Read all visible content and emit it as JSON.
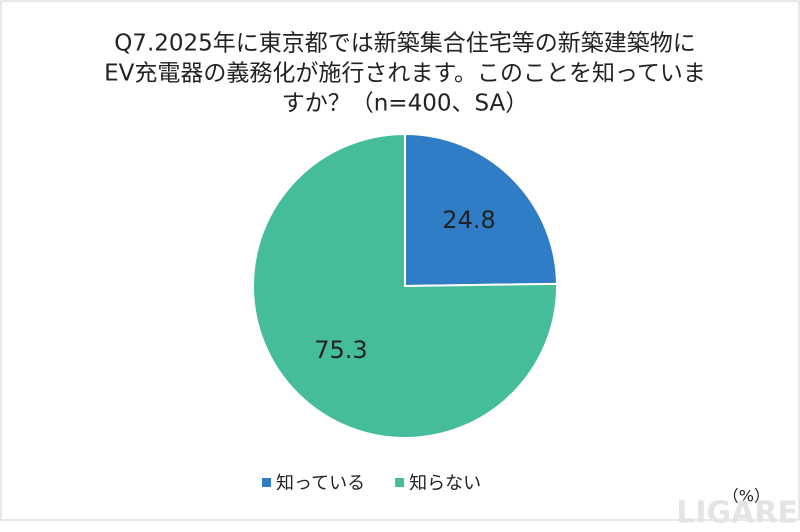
{
  "chart_data": {
    "type": "pie",
    "title": [
      "Q7.2025年に東京都では新築集合住宅等の新築建築物に",
      "EV充電器の義務化が施行されます。このことを知っていま",
      "すか？（n=400、SA）"
    ],
    "categories": [
      "知っている",
      "知らない"
    ],
    "values": [
      24.8,
      75.3
    ],
    "colors": [
      "#2e7dc6",
      "#45bd9b"
    ],
    "unit_label": "（%）",
    "legend": "bottom",
    "watermark": "LIGARE"
  }
}
